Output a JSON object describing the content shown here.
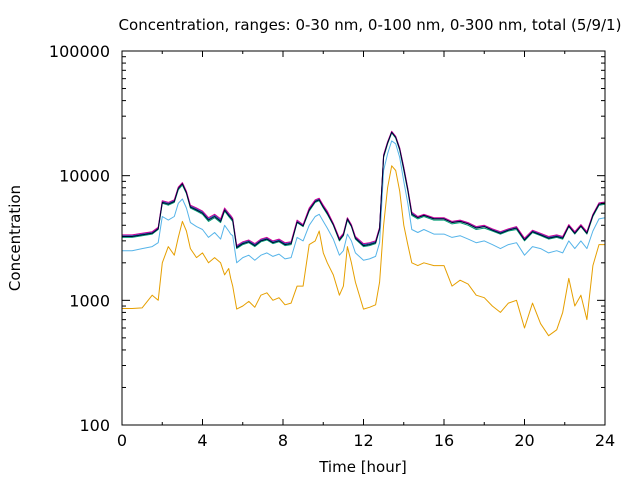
{
  "chart_data": {
    "type": "line",
    "title": "Concentration, ranges: 0-30 nm, 0-100 nm, 0-300 nm, total (5/9/1)",
    "xlabel": "Time [hour]",
    "ylabel": "Concentration",
    "xlim": [
      0,
      24
    ],
    "ylim": [
      100,
      100000
    ],
    "yscale": "log",
    "grid": false,
    "legend": "none",
    "xticks": [
      0,
      4,
      8,
      12,
      16,
      20,
      24
    ],
    "xtick_labels": [
      "0",
      "4",
      "8",
      "12",
      "16",
      "20",
      "24"
    ],
    "yticks": [
      100,
      1000,
      10000,
      100000
    ],
    "ytick_labels": [
      "100",
      "1000",
      "10000",
      "100000"
    ],
    "x": [
      0,
      0.5,
      1,
      1.5,
      1.8,
      2,
      2.3,
      2.6,
      2.8,
      3,
      3.2,
      3.4,
      3.7,
      4,
      4.3,
      4.6,
      4.9,
      5.1,
      5.3,
      5.4,
      5.5,
      5.7,
      6,
      6.3,
      6.6,
      6.9,
      7.2,
      7.5,
      7.8,
      8.1,
      8.4,
      8.7,
      9,
      9.3,
      9.6,
      9.8,
      10,
      10.2,
      10.5,
      10.8,
      11,
      11.2,
      11.4,
      11.6,
      12,
      12.3,
      12.6,
      12.8,
      13,
      13.2,
      13.4,
      13.6,
      13.8,
      14,
      14.2,
      14.4,
      14.7,
      15,
      15.5,
      16,
      16.4,
      16.8,
      17.2,
      17.6,
      18,
      18.4,
      18.8,
      19.2,
      19.6,
      20,
      20.4,
      20.8,
      21.2,
      21.6,
      21.9,
      22.2,
      22.5,
      22.8,
      23.1,
      23.4,
      23.7,
      24
    ],
    "series": [
      {
        "color": "#e69f00",
        "values": [
          860,
          860,
          870,
          1100,
          1000,
          2000,
          2700,
          2300,
          3200,
          4300,
          3600,
          2600,
          2200,
          2400,
          2000,
          2200,
          2000,
          1600,
          1800,
          1500,
          1300,
          850,
          900,
          980,
          880,
          1100,
          1150,
          1000,
          1050,
          920,
          950,
          1300,
          1300,
          2800,
          3000,
          3600,
          2400,
          2000,
          1600,
          1100,
          1300,
          2700,
          2000,
          1400,
          850,
          880,
          920,
          1400,
          4000,
          8000,
          12000,
          11000,
          7500,
          4000,
          2800,
          2000,
          1900,
          2000,
          1900,
          1900,
          1300,
          1450,
          1350,
          1100,
          1050,
          900,
          800,
          950,
          1000,
          600,
          950,
          650,
          520,
          580,
          800,
          1500,
          900,
          1100,
          700,
          1900,
          2800,
          2800
        ]
      },
      {
        "color": "#56b4e9",
        "values": [
          2500,
          2500,
          2600,
          2700,
          2900,
          4700,
          4400,
          4700,
          6000,
          6500,
          5500,
          4200,
          3900,
          3700,
          3200,
          3500,
          3100,
          4000,
          3600,
          3400,
          3300,
          2000,
          2200,
          2300,
          2100,
          2300,
          2400,
          2250,
          2350,
          2150,
          2200,
          3200,
          3000,
          4000,
          4700,
          4900,
          4300,
          3800,
          3100,
          2300,
          2500,
          3400,
          3000,
          2400,
          2100,
          2150,
          2250,
          2900,
          11000,
          15000,
          19000,
          18000,
          14000,
          9000,
          6000,
          3700,
          3500,
          3700,
          3400,
          3400,
          3200,
          3300,
          3100,
          2900,
          3000,
          2800,
          2600,
          2800,
          2900,
          2300,
          2700,
          2600,
          2400,
          2500,
          2400,
          3000,
          2600,
          3000,
          2600,
          3600,
          4500,
          4600
        ]
      },
      {
        "color": "#009e73",
        "values": [
          3200,
          3200,
          3300,
          3400,
          3700,
          6000,
          5800,
          6100,
          7700,
          8400,
          7200,
          5500,
          5200,
          4900,
          4300,
          4600,
          4200,
          5200,
          4700,
          4500,
          4300,
          2600,
          2800,
          2900,
          2700,
          2950,
          3050,
          2850,
          2950,
          2750,
          2800,
          4200,
          3900,
          5200,
          6100,
          6300,
          5500,
          4900,
          4000,
          3000,
          3300,
          4400,
          3900,
          3100,
          2700,
          2750,
          2850,
          3700,
          14000,
          18000,
          22000,
          20000,
          16000,
          11000,
          7500,
          4800,
          4500,
          4700,
          4400,
          4400,
          4100,
          4200,
          4000,
          3700,
          3800,
          3600,
          3400,
          3600,
          3700,
          3000,
          3500,
          3300,
          3100,
          3200,
          3100,
          3900,
          3400,
          3900,
          3400,
          4700,
          5800,
          5900
        ]
      },
      {
        "color": "#0072b2",
        "values": [
          3300,
          3300,
          3400,
          3500,
          3800,
          6200,
          6000,
          6300,
          8000,
          8700,
          7400,
          5700,
          5400,
          5100,
          4500,
          4800,
          4400,
          5400,
          4900,
          4700,
          4500,
          2700,
          2900,
          3000,
          2800,
          3050,
          3150,
          2950,
          3050,
          2850,
          2900,
          4300,
          4000,
          5400,
          6300,
          6500,
          5700,
          5100,
          4100,
          3100,
          3400,
          4550,
          4000,
          3200,
          2800,
          2850,
          2950,
          3800,
          14500,
          18500,
          22500,
          20500,
          16500,
          11500,
          7800,
          5000,
          4650,
          4850,
          4550,
          4550,
          4250,
          4350,
          4150,
          3850,
          3950,
          3700,
          3500,
          3700,
          3850,
          3100,
          3600,
          3400,
          3200,
          3300,
          3200,
          4000,
          3500,
          4000,
          3500,
          4850,
          6000,
          6100
        ]
      },
      {
        "color": "#cc0099",
        "values": [
          3350,
          3350,
          3450,
          3550,
          3850,
          6300,
          6100,
          6400,
          8100,
          8800,
          7500,
          5800,
          5500,
          5200,
          4600,
          4900,
          4500,
          5500,
          5000,
          4800,
          4550,
          2750,
          2950,
          3050,
          2850,
          3100,
          3200,
          3000,
          3100,
          2900,
          2950,
          4400,
          4050,
          5500,
          6400,
          6600,
          5800,
          5200,
          4150,
          3150,
          3450,
          4600,
          4050,
          3250,
          2850,
          2900,
          3000,
          3850,
          14700,
          18700,
          22700,
          20700,
          16700,
          11700,
          7900,
          5100,
          4700,
          4900,
          4600,
          4600,
          4300,
          4400,
          4200,
          3900,
          4000,
          3750,
          3550,
          3750,
          3900,
          3150,
          3650,
          3450,
          3250,
          3350,
          3250,
          4050,
          3550,
          4050,
          3550,
          4900,
          6050,
          6150
        ]
      },
      {
        "color": "#000033",
        "values": [
          3250,
          3250,
          3350,
          3450,
          3750,
          6100,
          5900,
          6200,
          7900,
          8600,
          7300,
          5600,
          5300,
          5000,
          4400,
          4700,
          4300,
          5300,
          4800,
          4600,
          4400,
          2650,
          2850,
          2950,
          2750,
          3000,
          3100,
          2900,
          3000,
          2800,
          2850,
          4250,
          3950,
          5300,
          6200,
          6400,
          5600,
          5000,
          4050,
          3050,
          3350,
          4500,
          3950,
          3150,
          2750,
          2800,
          2900,
          3750,
          14300,
          18300,
          22300,
          20300,
          16300,
          11300,
          7700,
          4900,
          4600,
          4800,
          4500,
          4500,
          4200,
          4300,
          4100,
          3800,
          3900,
          3650,
          3450,
          3650,
          3800,
          3050,
          3550,
          3350,
          3150,
          3250,
          3150,
          3950,
          3450,
          3950,
          3450,
          4800,
          5900,
          6000
        ]
      }
    ]
  }
}
